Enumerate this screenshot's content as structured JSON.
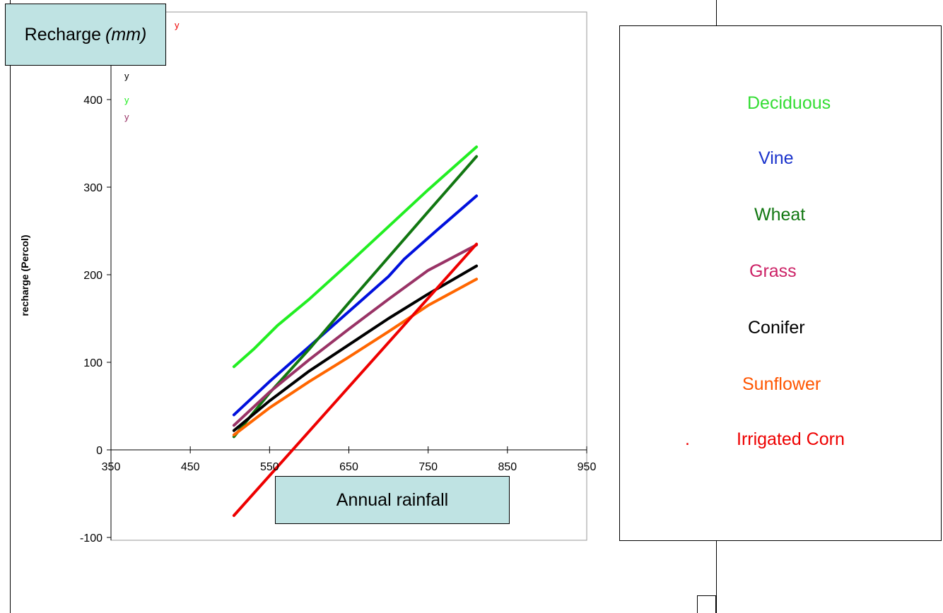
{
  "chart_data": {
    "type": "line",
    "ylabel": "recharge (Percol)",
    "xlim": [
      350,
      950
    ],
    "ylim": [
      -100,
      500
    ],
    "x_ticks": [
      350,
      450,
      550,
      650,
      750,
      850,
      950
    ],
    "y_ticks": [
      -100,
      0,
      100,
      200,
      300,
      400
    ],
    "x_tick_labels": [
      "350",
      "450",
      "550",
      "650",
      "750",
      "850",
      "950"
    ],
    "y_tick_labels": [
      "-100",
      "0",
      "100",
      "200",
      "300",
      "400"
    ],
    "grid": false,
    "legend_position": "right",
    "series": [
      {
        "name": "Deciduous",
        "color": "#22ee22",
        "x": [
          505,
          530,
          560,
          600,
          650,
          700,
          750,
          811
        ],
        "y": [
          95,
          115,
          142,
          172,
          213,
          255,
          297,
          346
        ]
      },
      {
        "name": "Vine",
        "color": "#0010dd",
        "x": [
          505,
          550,
          600,
          650,
          700,
          720,
          760,
          811
        ],
        "y": [
          40,
          78,
          118,
          158,
          198,
          218,
          250,
          290
        ]
      },
      {
        "name": "Wheat",
        "color": "#117711",
        "x": [
          505,
          550,
          600,
          650,
          700,
          750,
          811
        ],
        "y": [
          15,
          65,
          115,
          168,
          220,
          272,
          335
        ]
      },
      {
        "name": "Grass",
        "color": "#993366",
        "x": [
          505,
          550,
          600,
          650,
          700,
          750,
          811
        ],
        "y": [
          28,
          66,
          103,
          138,
          172,
          205,
          234
        ]
      },
      {
        "name": "Conifer",
        "color": "#000000",
        "x": [
          505,
          550,
          600,
          650,
          700,
          750,
          811
        ],
        "y": [
          22,
          56,
          90,
          120,
          150,
          178,
          210
        ]
      },
      {
        "name": "Sunflower",
        "color": "#ff6600",
        "x": [
          505,
          550,
          600,
          650,
          700,
          750,
          811
        ],
        "y": [
          17,
          48,
          78,
          106,
          135,
          165,
          195
        ]
      },
      {
        "name": "Irrigated Corn",
        "color": "#ee0000",
        "x": [
          505,
          811
        ],
        "y": [
          -75,
          235
        ]
      }
    ]
  },
  "labels": {
    "recharge_box_main": "Recharge ",
    "recharge_box_unit": "(mm)",
    "annual_rainfall": "Annual rainfall",
    "small_y_red": "y",
    "small_y_black": "y",
    "small_y_green": "y",
    "small_y_purple": "y",
    "legend_dot": "."
  },
  "legend": [
    {
      "name": "Deciduous",
      "color": "#33dd33"
    },
    {
      "name": "Vine",
      "color": "#1a33cc"
    },
    {
      "name": "Wheat",
      "color": "#117711"
    },
    {
      "name": "Grass",
      "color": "#cc2266"
    },
    {
      "name": "Conifer",
      "color": "#000000"
    },
    {
      "name": "Sunflower",
      "color": "#ff5500"
    },
    {
      "name": "Irrigated Corn",
      "color": "#ee0000"
    }
  ]
}
